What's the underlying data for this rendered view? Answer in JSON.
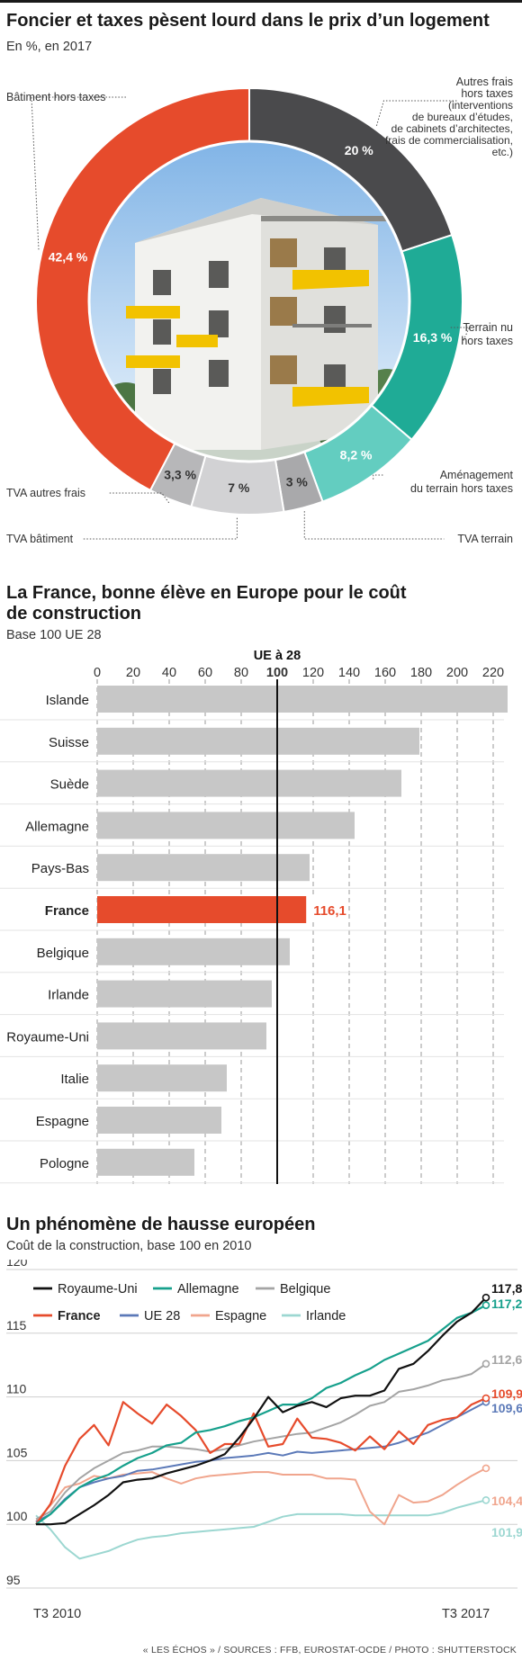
{
  "pie": {
    "title": "Foncier et taxes pèsent lourd dans le prix d’un logement",
    "subtitle": "En %, en 2017"
  },
  "bars": {
    "title_line1": "La France, bonne élève en Europe pour le coût",
    "title_line2": "de construction",
    "subtitle": "Base 100 UE 28",
    "ref_label": "UE à 28"
  },
  "lines": {
    "title": "Un phénomène de hausse européen",
    "subtitle": "Coût de la construction, base 100 en 2010",
    "x_start_label": "T3 2010",
    "x_end_label": "T3 2017"
  },
  "footer": "« LES ÉCHOS » / SOURCES : FFB, EUROSTAT-OCDE / PHOTO : SHUTTERSTOCK",
  "chart_data": [
    {
      "type": "pie",
      "title": "Foncier et taxes pèsent lourd dans le prix d’un logement",
      "subtitle": "En %, en 2017",
      "slices": [
        {
          "label": "Autres frais hors taxes (interventions de bureaux d’études, de cabinets d’architectes, frais de commercialisation, etc.)",
          "label_lines": [
            "Autres frais",
            "hors taxes",
            "(interventions",
            "de bureaux d’études,",
            "de cabinets  d’architectes,",
            "frais de commercialisation,",
            "etc.)"
          ],
          "value": 20,
          "value_label": "20 %",
          "color": "#4a4a4c"
        },
        {
          "label": "Terrain nu hors taxes",
          "label_lines": [
            "Terrain nu",
            "hors taxes"
          ],
          "value": 16.3,
          "value_label": "16,3 %",
          "color": "#1fab96"
        },
        {
          "label": "Aménagement du terrain hors taxes",
          "label_lines": [
            "Aménagement",
            "du terrain hors taxes"
          ],
          "value": 8.2,
          "value_label": "8,2 %",
          "color": "#63cdc0"
        },
        {
          "label": "TVA terrain",
          "label_lines": [
            "TVA terrain"
          ],
          "value": 3,
          "value_label": "3 %",
          "color": "#a9a9ab"
        },
        {
          "label": "TVA bâtiment",
          "label_lines": [
            "TVA bâtiment"
          ],
          "value": 7,
          "value_label": "7 %",
          "color": "#d2d2d4"
        },
        {
          "label": "TVA autres frais",
          "label_lines": [
            "TVA autres frais"
          ],
          "value": 3.3,
          "value_label": "3,3 %",
          "color": "#b7b7b9"
        },
        {
          "label": "Bâtiment hors taxes",
          "label_lines": [
            "Bâtiment hors taxes"
          ],
          "value": 42.4,
          "value_label": "42,4 %",
          "color": "#e64b2c"
        }
      ]
    },
    {
      "type": "bar",
      "orientation": "horizontal",
      "title": "La France, bonne élève en Europe pour le coût de construction",
      "subtitle": "Base 100 UE 28",
      "categories": [
        "Islande",
        "Suisse",
        "Suède",
        "Allemagne",
        "Pays-Bas",
        "France",
        "Belgique",
        "Irlande",
        "Royaume-Uni",
        "Italie",
        "Espagne",
        "Pologne"
      ],
      "values": [
        228,
        179,
        169,
        143,
        118,
        116.1,
        107,
        97,
        94,
        72,
        69,
        54
      ],
      "highlight": {
        "category": "France",
        "value_label": "116,1",
        "color": "#e64b2c"
      },
      "bar_color": "#c7c7c7",
      "xlim": [
        0,
        230
      ],
      "xticks": [
        0,
        20,
        40,
        60,
        80,
        100,
        120,
        140,
        160,
        180,
        200,
        220
      ],
      "reference": {
        "value": 100,
        "label": "UE à 28"
      },
      "grid": true
    },
    {
      "type": "line",
      "title": "Un phénomène de hausse européen",
      "subtitle": "Coût de la construction, base 100 en 2010",
      "x_labels": [
        "T3 2010",
        "T3 2017"
      ],
      "ylim": [
        95,
        120
      ],
      "yticks": [
        95,
        100,
        105,
        110,
        115,
        120
      ],
      "grid": true,
      "legend_position": "top-left",
      "series": [
        {
          "name": "Royaume-Uni",
          "color": "#111111",
          "end_label": "117,8",
          "values": [
            100,
            100,
            100.1,
            100.8,
            101.5,
            102.3,
            103.3,
            103.5,
            103.6,
            104,
            104.3,
            104.6,
            105,
            105.5,
            106.8,
            108.3,
            110,
            108.8,
            109.3,
            109.6,
            109.2,
            109.9,
            110.1,
            110.1,
            110.5,
            112.2,
            112.6,
            113.6,
            114.8,
            115.9,
            116.6,
            117.8
          ]
        },
        {
          "name": "Allemagne",
          "color": "#16a08c",
          "end_label": "117,2",
          "values": [
            100,
            100.8,
            101.9,
            102.9,
            103.5,
            103.9,
            104.6,
            105.2,
            105.6,
            106.2,
            106.4,
            107.2,
            107.4,
            107.7,
            108.1,
            108.4,
            108.9,
            109.4,
            109.4,
            109.9,
            110.7,
            111.1,
            111.7,
            112.2,
            112.9,
            113.4,
            113.9,
            114.4,
            115.3,
            116.2,
            116.6,
            117.2
          ]
        },
        {
          "name": "Belgique",
          "color": "#a4a4a4",
          "end_label": "112,6",
          "values": [
            100.4,
            101,
            102.5,
            103.6,
            104.4,
            105,
            105.6,
            105.8,
            106.1,
            106.1,
            106,
            105.9,
            105.7,
            105.9,
            106.2,
            106.5,
            106.7,
            106.9,
            107.1,
            107.2,
            107.6,
            108,
            108.6,
            109.3,
            109.6,
            110.4,
            110.6,
            110.9,
            111.3,
            111.5,
            111.8,
            112.6
          ]
        },
        {
          "name": "France",
          "color": "#e64b2c",
          "end_label": "109,9",
          "values": [
            100,
            101.6,
            104.6,
            106.7,
            107.8,
            106.2,
            109.6,
            108.7,
            107.9,
            109.4,
            108.5,
            107.4,
            105.6,
            106.3,
            106.3,
            108.7,
            106.1,
            106.3,
            108.3,
            106.8,
            106.7,
            106.4,
            105.8,
            106.9,
            105.9,
            107.3,
            106.3,
            107.8,
            108.2,
            108.4,
            109.4,
            109.9
          ]
        },
        {
          "name": "UE 28",
          "color": "#5b79b8",
          "end_label": "109,6",
          "values": [
            100.2,
            100.8,
            102,
            102.9,
            103.3,
            103.6,
            103.8,
            104.2,
            104.3,
            104.5,
            104.7,
            104.9,
            105,
            105.2,
            105.3,
            105.4,
            105.6,
            105.4,
            105.7,
            105.6,
            105.7,
            105.8,
            105.9,
            106,
            106.1,
            106.4,
            106.8,
            107.2,
            107.8,
            108.4,
            109,
            109.6
          ]
        },
        {
          "name": "Espagne",
          "color": "#f0a58d",
          "end_label": "104,4",
          "values": [
            100.2,
            101.5,
            102.9,
            103.2,
            103.8,
            103.6,
            103.9,
            104,
            104.1,
            103.6,
            103.2,
            103.6,
            103.8,
            103.9,
            104,
            104.1,
            104.1,
            103.9,
            103.9,
            103.9,
            103.6,
            103.6,
            103.5,
            101,
            100,
            102.3,
            101.7,
            101.8,
            102.3,
            103.1,
            103.8,
            104.4
          ]
        },
        {
          "name": "Irlande",
          "color": "#9cd7d1",
          "end_label": "101,9",
          "values": [
            100.7,
            99.6,
            98.2,
            97.3,
            97.6,
            97.9,
            98.4,
            98.8,
            99,
            99.1,
            99.3,
            99.4,
            99.5,
            99.6,
            99.7,
            99.8,
            100.2,
            100.6,
            100.8,
            100.8,
            100.8,
            100.8,
            100.7,
            100.7,
            100.7,
            100.7,
            100.7,
            100.7,
            100.9,
            101.3,
            101.6,
            101.9
          ]
        }
      ]
    }
  ]
}
